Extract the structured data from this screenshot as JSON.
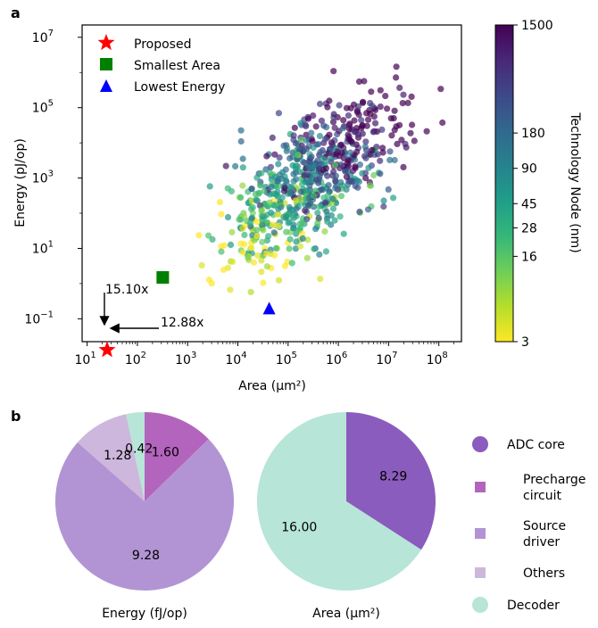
{
  "panel_labels": {
    "a": "a",
    "b": "b"
  },
  "chart_data": [
    {
      "type": "scatter",
      "xlabel": "Area (μm²)",
      "ylabel": "Energy (pJ/op)",
      "x_scale": "log",
      "y_scale": "log",
      "x_ticks": [
        {
          "exp": 1,
          "base": "10",
          "sup": "1"
        },
        {
          "exp": 2,
          "base": "10",
          "sup": "2"
        },
        {
          "exp": 3,
          "base": "10",
          "sup": "3"
        },
        {
          "exp": 4,
          "base": "10",
          "sup": "4"
        },
        {
          "exp": 5,
          "base": "10",
          "sup": "5"
        },
        {
          "exp": 6,
          "base": "10",
          "sup": "6"
        },
        {
          "exp": 7,
          "base": "10",
          "sup": "7"
        },
        {
          "exp": 8,
          "base": "10",
          "sup": "8"
        }
      ],
      "y_ticks": [
        {
          "exp": -1,
          "base": "10",
          "sup": "−1"
        },
        {
          "exp": 1,
          "base": "10",
          "sup": "1"
        },
        {
          "exp": 3,
          "base": "10",
          "sup": "3"
        },
        {
          "exp": 5,
          "base": "10",
          "sup": "5"
        },
        {
          "exp": 7,
          "base": "10",
          "sup": "7"
        }
      ],
      "xlim_exp": [
        0.9,
        8.45
      ],
      "ylim_exp": [
        -1.65,
        7.35
      ],
      "colorbar": {
        "label": "Technology Node (nm)",
        "ticks": [
          "3",
          "16",
          "28",
          "45",
          "90",
          "180",
          "1500"
        ],
        "tick_values": [
          3,
          16,
          28,
          45,
          90,
          180,
          1500
        ],
        "colors": [
          "#fde725",
          "#b5de2b",
          "#6ece58",
          "#35b779",
          "#1f9e89",
          "#26828e",
          "#31688e",
          "#3e4989",
          "#482878",
          "#440154"
        ]
      },
      "legend": [
        {
          "label": "Proposed",
          "marker": "star",
          "color": "#ff0000"
        },
        {
          "label": "Smallest Area",
          "marker": "square",
          "color": "#008000"
        },
        {
          "label": "Lowest Energy",
          "marker": "triangle",
          "color": "#0000ff"
        }
      ],
      "highlight_points": {
        "proposed": {
          "x": 25,
          "y": 0.013
        },
        "smallest_area": {
          "x": 320,
          "y": 1.5
        },
        "lowest_energy": {
          "x": 42000,
          "y": 0.19
        }
      },
      "annotations": [
        {
          "text": "15.10x",
          "direction": "vertical"
        },
        {
          "text": "12.88x",
          "direction": "horizontal"
        }
      ],
      "cloud_model": {
        "count": 700,
        "center_log_x": 5.4,
        "center_log_y": 2.9,
        "spread_x": 0.9,
        "spread_y": 1.1,
        "correlation": 0.62
      }
    },
    {
      "type": "pie",
      "title": "Energy (fJ/op)",
      "slices": [
        {
          "label": "Precharge circuit",
          "value": 1.6,
          "text": "1.60",
          "color": "#b364bd"
        },
        {
          "label": "Source driver",
          "value": 9.28,
          "text": "9.28",
          "color": "#b294d4"
        },
        {
          "label": "Others",
          "value": 1.28,
          "text": "1.28",
          "color": "#cdb7dc"
        },
        {
          "label": "Decoder",
          "value": 0.42,
          "text": "0.42",
          "color": "#b7e5d8"
        }
      ]
    },
    {
      "type": "pie",
      "title": "Area (μm²)",
      "slices": [
        {
          "label": "ADC core",
          "value": 8.29,
          "text": "8.29",
          "color": "#8a5cbd"
        },
        {
          "label": "Decoder",
          "value": 16.0,
          "text": "16.00",
          "color": "#b7e5d8"
        }
      ]
    }
  ],
  "pie_legend": [
    {
      "lines": [
        "ADC core"
      ],
      "marker": "circle",
      "color": "#8a5cbd"
    },
    {
      "lines": [
        "Precharge",
        "circuit"
      ],
      "marker": "square",
      "color": "#b364bd"
    },
    {
      "lines": [
        "Source",
        "driver"
      ],
      "marker": "square",
      "color": "#b294d4"
    },
    {
      "lines": [
        "Others"
      ],
      "marker": "square",
      "color": "#cdb7dc"
    },
    {
      "lines": [
        "Decoder"
      ],
      "marker": "circle",
      "color": "#b7e5d8"
    }
  ]
}
